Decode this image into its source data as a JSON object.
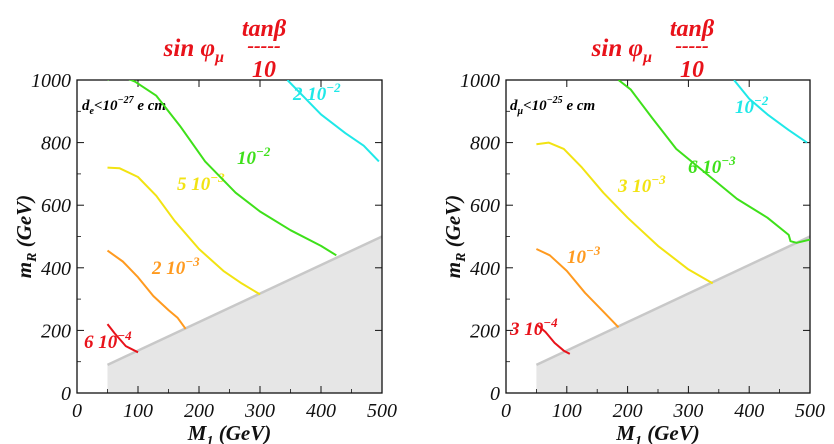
{
  "chart_data": [
    {
      "type": "line",
      "title": {
        "prefix": "sin φ",
        "sub": "μ",
        "numerator": "tanβ",
        "bar": "-----",
        "denominator": "10"
      },
      "xlabel": {
        "main": "M",
        "sub": "1",
        "unit": " (GeV)"
      },
      "ylabel": {
        "main": "m",
        "sub": "R",
        "unit": " (GeV)"
      },
      "xlim": [
        0,
        500
      ],
      "ylim": [
        0,
        1000
      ],
      "xticks": [
        0,
        100,
        200,
        300,
        400,
        500
      ],
      "yticks": [
        0,
        200,
        400,
        600,
        800,
        1000
      ],
      "annotation": {
        "sym": "d",
        "sub": "e",
        "rest": "<10",
        "exp": "−27",
        "unit": " e cm"
      },
      "excluded_region": {
        "color": "#e6e6e6",
        "points": [
          [
            50,
            90
          ],
          [
            50,
            0
          ],
          [
            500,
            0
          ],
          [
            500,
            500
          ]
        ]
      },
      "series": [
        {
          "color": "#e8121a",
          "label": {
            "base": "6 10",
            "exp": "−4"
          },
          "points": [
            [
              50,
              220
            ],
            [
              62,
              190
            ],
            [
              80,
              150
            ],
            [
              100,
              130
            ]
          ]
        },
        {
          "color": "#ff9a1f",
          "label": {
            "base": "2 10",
            "exp": "−3"
          },
          "points": [
            [
              50,
              455
            ],
            [
              75,
              420
            ],
            [
              100,
              370
            ],
            [
              125,
              310
            ],
            [
              150,
              265
            ],
            [
              165,
              240
            ],
            [
              178,
              205
            ]
          ]
        },
        {
          "color": "#f2e312",
          "label": {
            "base": "5 10",
            "exp": "−3"
          },
          "points": [
            [
              50,
              720
            ],
            [
              70,
              718
            ],
            [
              100,
              690
            ],
            [
              130,
              630
            ],
            [
              160,
              550
            ],
            [
              200,
              460
            ],
            [
              240,
              390
            ],
            [
              270,
              350
            ],
            [
              300,
              315
            ]
          ]
        },
        {
          "color": "#3ee01a",
          "label": {
            "base": "10",
            "exp": "−2"
          },
          "points": [
            [
              50,
              1000
            ],
            [
              55,
              1010
            ],
            [
              70,
              1015
            ],
            [
              95,
              995
            ],
            [
              130,
              950
            ],
            [
              170,
              850
            ],
            [
              210,
              740
            ],
            [
              260,
              640
            ],
            [
              300,
              580
            ],
            [
              350,
              520
            ],
            [
              400,
              470
            ],
            [
              425,
              440
            ]
          ]
        },
        {
          "color": "#1fe8e8",
          "label": {
            "base": "2 10",
            "exp": "−2"
          },
          "points": [
            [
              345,
              1000
            ],
            [
              370,
              950
            ],
            [
              400,
              890
            ],
            [
              440,
              830
            ],
            [
              470,
              790
            ],
            [
              495,
              740
            ]
          ]
        }
      ]
    },
    {
      "type": "line",
      "title": {
        "prefix": "sin φ",
        "sub": "μ",
        "numerator": "tanβ",
        "bar": "-----",
        "denominator": "10"
      },
      "xlabel": {
        "main": "M",
        "sub": "1",
        "unit": " (GeV)"
      },
      "ylabel": {
        "main": "m",
        "sub": "R",
        "unit": " (GeV)"
      },
      "xlim": [
        0,
        500
      ],
      "ylim": [
        0,
        1000
      ],
      "xticks": [
        0,
        100,
        200,
        300,
        400,
        500
      ],
      "yticks": [
        0,
        200,
        400,
        600,
        800,
        1000
      ],
      "annotation": {
        "sym": "d",
        "sub": "μ",
        "rest": "<10",
        "exp": "−25",
        "unit": " e cm"
      },
      "excluded_region": {
        "color": "#e6e6e6",
        "points": [
          [
            50,
            90
          ],
          [
            50,
            0
          ],
          [
            500,
            0
          ],
          [
            500,
            500
          ]
        ]
      },
      "series": [
        {
          "color": "#e8121a",
          "label": {
            "base": "3 10",
            "exp": "−4"
          },
          "points": [
            [
              50,
              220
            ],
            [
              65,
              195
            ],
            [
              80,
              160
            ],
            [
              95,
              135
            ],
            [
              105,
              125
            ]
          ]
        },
        {
          "color": "#ff9a1f",
          "label": {
            "base": "10",
            "exp": "−3"
          },
          "points": [
            [
              50,
              460
            ],
            [
              72,
              440
            ],
            [
              100,
              390
            ],
            [
              130,
              320
            ],
            [
              160,
              260
            ],
            [
              185,
              210
            ]
          ]
        },
        {
          "color": "#f2e312",
          "label": {
            "base": "3 10",
            "exp": "−3"
          },
          "points": [
            [
              50,
              795
            ],
            [
              70,
              800
            ],
            [
              95,
              780
            ],
            [
              125,
              720
            ],
            [
              160,
              640
            ],
            [
              200,
              560
            ],
            [
              250,
              470
            ],
            [
              300,
              395
            ],
            [
              340,
              350
            ]
          ]
        },
        {
          "color": "#3ee01a",
          "label": {
            "base": "6 10",
            "exp": "−3"
          },
          "points": [
            [
              185,
              1000
            ],
            [
              205,
              970
            ],
            [
              240,
              880
            ],
            [
              280,
              780
            ],
            [
              330,
              700
            ],
            [
              380,
              620
            ],
            [
              430,
              560
            ],
            [
              465,
              505
            ],
            [
              468,
              485
            ],
            [
              478,
              480
            ],
            [
              500,
              490
            ]
          ]
        },
        {
          "color": "#1fe8e8",
          "label": {
            "base": "",
            "exp": "−2"
          },
          "points": [
            [
              375,
              1000
            ],
            [
              400,
              940
            ],
            [
              430,
              890
            ],
            [
              465,
              840
            ],
            [
              495,
              800
            ]
          ]
        }
      ]
    }
  ]
}
